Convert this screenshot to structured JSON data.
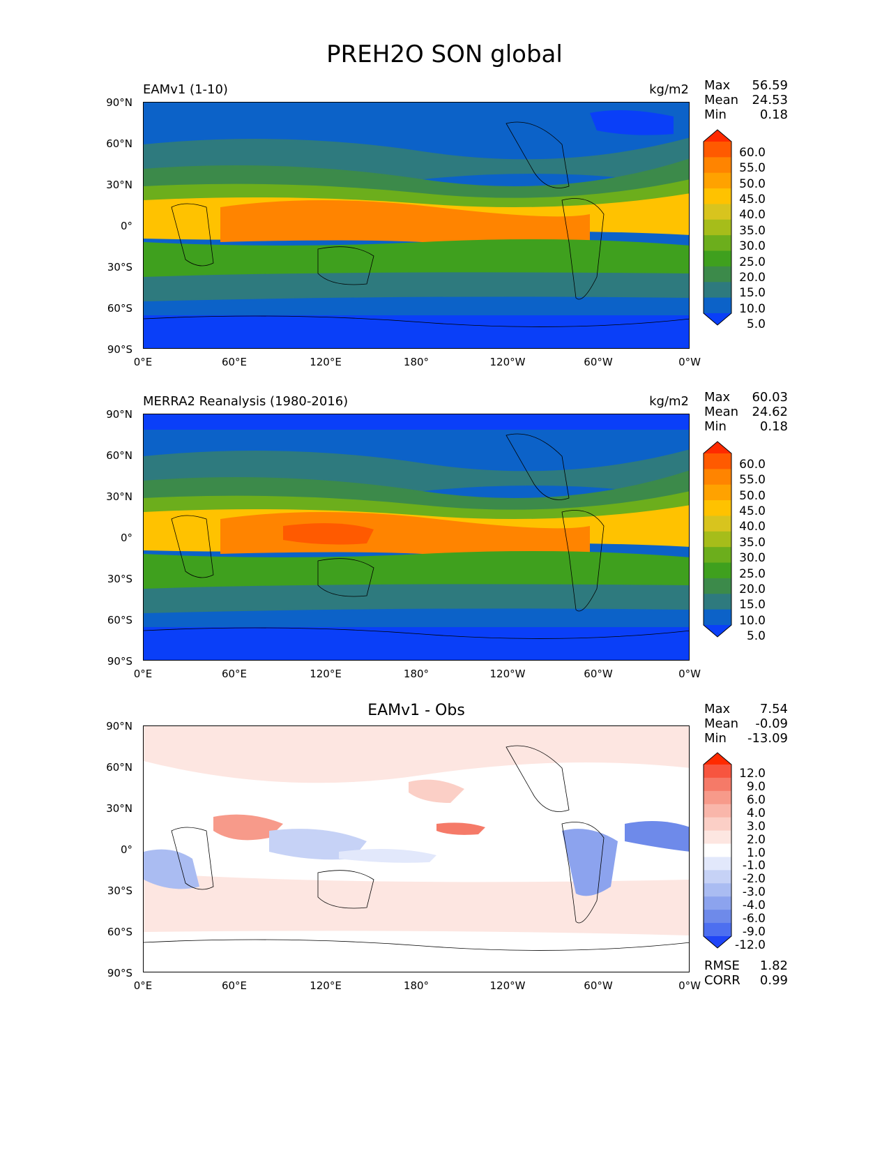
{
  "title": "PREH2O SON global",
  "panels": [
    {
      "id": "model",
      "title_left": "EAMv1 (1-10)",
      "title_center": "",
      "units": "kg/m2",
      "stats": [
        {
          "label": "Max",
          "value": "56.59"
        },
        {
          "label": "Mean",
          "value": "24.53"
        },
        {
          "label": "Min",
          "value": "0.18"
        }
      ],
      "colorbar": {
        "labels": [
          "60.0",
          "55.0",
          "50.0",
          "45.0",
          "40.0",
          "35.0",
          "30.0",
          "25.0",
          "20.0",
          "15.0",
          "10.0",
          "5.0"
        ],
        "colors": [
          "#ff2a00",
          "#ff5a00",
          "#ff8400",
          "#ffa200",
          "#ffc200",
          "#d8c41e",
          "#a6bd1a",
          "#6cae1c",
          "#3fa01e",
          "#3c8a4a",
          "#2e7a7e",
          "#0c62c8",
          "#0a3ff8"
        ]
      },
      "extra_stats": []
    },
    {
      "id": "obs",
      "title_left": "MERRA2 Reanalysis (1980-2016)",
      "title_center": "",
      "units": "kg/m2",
      "stats": [
        {
          "label": "Max",
          "value": "60.03"
        },
        {
          "label": "Mean",
          "value": "24.62"
        },
        {
          "label": "Min",
          "value": "0.18"
        }
      ],
      "colorbar": {
        "labels": [
          "60.0",
          "55.0",
          "50.0",
          "45.0",
          "40.0",
          "35.0",
          "30.0",
          "25.0",
          "20.0",
          "15.0",
          "10.0",
          "5.0"
        ],
        "colors": [
          "#ff2a00",
          "#ff5a00",
          "#ff8400",
          "#ffa200",
          "#ffc200",
          "#d8c41e",
          "#a6bd1a",
          "#6cae1c",
          "#3fa01e",
          "#3c8a4a",
          "#2e7a7e",
          "#0c62c8",
          "#0a3ff8"
        ]
      },
      "extra_stats": []
    },
    {
      "id": "diff",
      "title_left": "",
      "title_center": "EAMv1 - Obs",
      "units": "",
      "stats": [
        {
          "label": "Max",
          "value": "7.54"
        },
        {
          "label": "Mean",
          "value": "-0.09"
        },
        {
          "label": "Min",
          "value": "-13.09"
        }
      ],
      "colorbar": {
        "labels": [
          "12.0",
          "9.0",
          "6.0",
          "4.0",
          "3.0",
          "2.0",
          "1.0",
          "-1.0",
          "-2.0",
          "-3.0",
          "-4.0",
          "-6.0",
          "-9.0",
          "-12.0"
        ],
        "colors": [
          "#ff2a00",
          "#f7553f",
          "#f57a68",
          "#f79a8a",
          "#f9b6aa",
          "#fbcfc6",
          "#fde6e1",
          "#ffffff",
          "#e2e8fb",
          "#c6d2f6",
          "#aabcf2",
          "#8ca3ee",
          "#6e8aea",
          "#4d6ff0",
          "#1f45f7"
        ]
      },
      "extra_stats": [
        {
          "label": "RMSE",
          "value": "1.82"
        },
        {
          "label": "CORR",
          "value": "0.99"
        }
      ]
    }
  ],
  "axes": {
    "y_ticks": [
      "90°N",
      "60°N",
      "30°N",
      "0°",
      "30°S",
      "60°S",
      "90°S"
    ],
    "x_ticks": [
      "0°E",
      "60°E",
      "120°E",
      "180°",
      "120°W",
      "60°W",
      "0°W"
    ]
  },
  "chart_data": [
    {
      "type": "heatmap",
      "variable": "PREH2O",
      "season": "SON",
      "region": "global",
      "panel_title": "EAMv1 (1-10)",
      "units": "kg/m2",
      "max": 56.59,
      "mean": 24.53,
      "min": 0.18,
      "color_levels": [
        5.0,
        10.0,
        15.0,
        20.0,
        25.0,
        30.0,
        35.0,
        40.0,
        45.0,
        50.0,
        55.0,
        60.0
      ],
      "xlim": [
        "0°E",
        "0°W"
      ],
      "ylim": [
        "90°S",
        "90°N"
      ]
    },
    {
      "type": "heatmap",
      "variable": "PREH2O",
      "season": "SON",
      "region": "global",
      "panel_title": "MERRA2 Reanalysis (1980-2016)",
      "units": "kg/m2",
      "max": 60.03,
      "mean": 24.62,
      "min": 0.18,
      "color_levels": [
        5.0,
        10.0,
        15.0,
        20.0,
        25.0,
        30.0,
        35.0,
        40.0,
        45.0,
        50.0,
        55.0,
        60.0
      ],
      "xlim": [
        "0°E",
        "0°W"
      ],
      "ylim": [
        "90°S",
        "90°N"
      ]
    },
    {
      "type": "heatmap",
      "variable": "PREH2O",
      "season": "SON",
      "region": "global",
      "panel_title": "EAMv1 - Obs",
      "max": 7.54,
      "mean": -0.09,
      "min": -13.09,
      "rmse": 1.82,
      "corr": 0.99,
      "color_levels": [
        -12.0,
        -9.0,
        -6.0,
        -4.0,
        -3.0,
        -2.0,
        -1.0,
        1.0,
        2.0,
        3.0,
        4.0,
        6.0,
        9.0,
        12.0
      ],
      "xlim": [
        "0°E",
        "0°W"
      ],
      "ylim": [
        "90°S",
        "90°N"
      ]
    }
  ]
}
